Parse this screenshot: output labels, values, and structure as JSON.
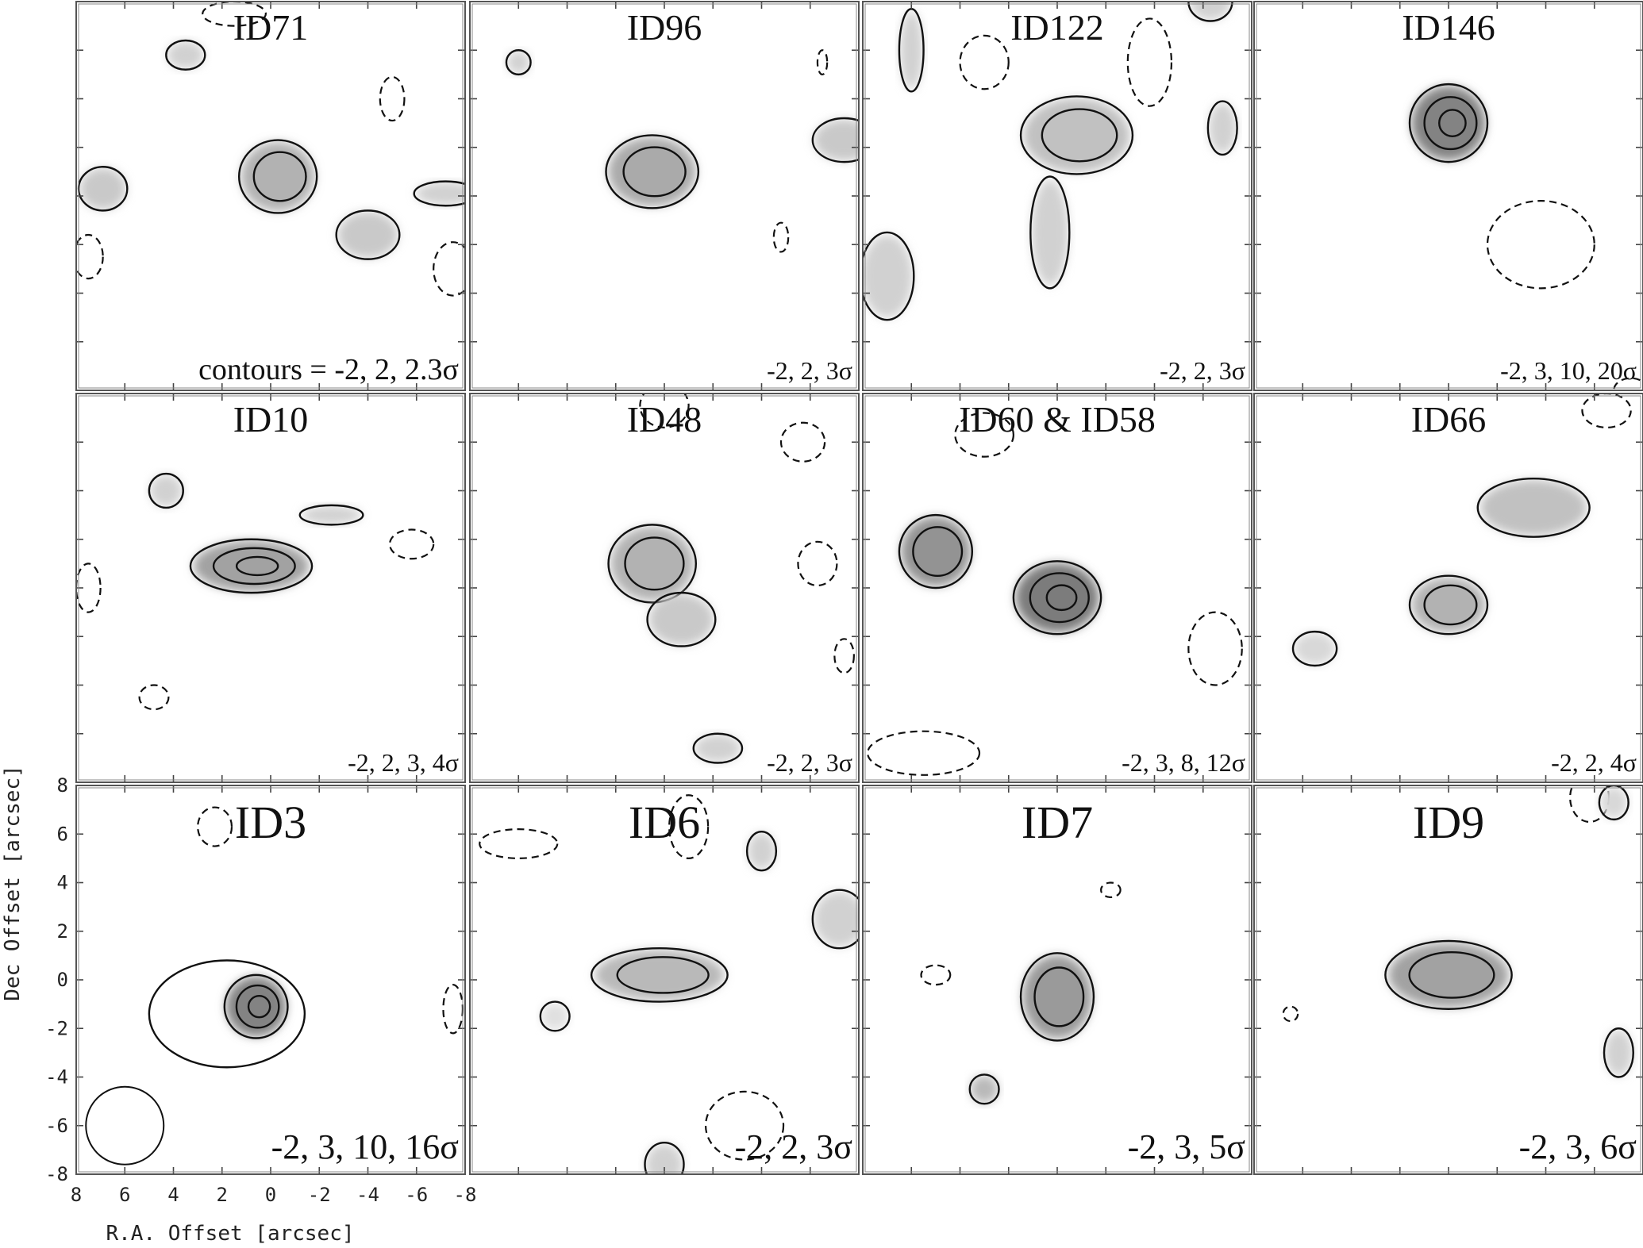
{
  "figure": {
    "xlabel": "R.A. Offset [arcsec]",
    "ylabel": "Dec Offset [arcsec]",
    "xticks": [
      8,
      6,
      4,
      2,
      0,
      -2,
      -4,
      -6,
      -8
    ],
    "yticks": [
      8,
      6,
      4,
      2,
      0,
      -2,
      -4,
      -6,
      -8
    ]
  },
  "chart_data": {
    "type": "contour-map",
    "xlabel": "R.A. Offset [arcsec]",
    "ylabel": "Dec Offset [arcsec]",
    "xlim": [
      8,
      -8
    ],
    "ylim": [
      -8,
      8
    ],
    "beam": {
      "x": 6,
      "y": -6,
      "radius": 1.6
    },
    "panels": [
      {
        "id": "ID71",
        "contours": "contours = -2, 2, 2.3σ",
        "title_size": "normal",
        "blobs": [
          [
            -0.3,
            0.8,
            1.6,
            1.5,
            0.5,
            2
          ],
          [
            6.9,
            0.3,
            1.0,
            0.9,
            0.35,
            1
          ],
          [
            3.5,
            5.8,
            0.8,
            0.6,
            0.3,
            1
          ],
          [
            -4.0,
            -1.6,
            1.3,
            1.0,
            0.35,
            1
          ],
          [
            -7.2,
            0.1,
            1.3,
            0.5,
            0.3,
            1
          ],
          [
            -5.0,
            4.0,
            0.5,
            0.9,
            0,
            -1
          ],
          [
            1.5,
            7.5,
            1.3,
            0.5,
            0,
            -1
          ],
          [
            7.5,
            -2.5,
            0.6,
            0.9,
            0,
            -1
          ],
          [
            -7.5,
            -3.0,
            0.8,
            1.1,
            0,
            -1
          ]
        ]
      },
      {
        "id": "ID96",
        "contours": "-2, 2, 3σ",
        "title_size": "normal",
        "blobs": [
          [
            0.5,
            1.0,
            1.9,
            1.5,
            0.55,
            2
          ],
          [
            6.0,
            5.5,
            0.5,
            0.5,
            0.3,
            1
          ],
          [
            -7.4,
            2.3,
            1.3,
            0.9,
            0.35,
            1
          ],
          [
            -4.8,
            -1.7,
            0.3,
            0.6,
            0,
            -1
          ],
          [
            -6.5,
            5.5,
            0.2,
            0.5,
            0,
            -1
          ]
        ]
      },
      {
        "id": "ID122",
        "contours": "-2, 2, 3σ",
        "title_size": "normal",
        "blobs": [
          [
            -0.8,
            2.5,
            2.3,
            1.6,
            0.4,
            2
          ],
          [
            0.3,
            -1.5,
            0.8,
            2.3,
            0.3,
            1
          ],
          [
            7.0,
            -3.3,
            1.1,
            1.8,
            0.3,
            1
          ],
          [
            6.0,
            6.0,
            0.5,
            1.7,
            0.3,
            1
          ],
          [
            -6.8,
            2.8,
            0.6,
            1.1,
            0.3,
            1
          ],
          [
            -6.3,
            8.0,
            0.9,
            0.8,
            0.3,
            1
          ],
          [
            3.0,
            5.5,
            1.0,
            1.1,
            0,
            -1
          ],
          [
            -3.8,
            5.5,
            0.9,
            1.8,
            0,
            -1
          ]
        ]
      },
      {
        "id": "ID146",
        "contours": "-2, 3, 10, 20σ",
        "title_size": "normal",
        "blobs": [
          [
            0.0,
            3.0,
            1.6,
            1.6,
            0.8,
            3
          ],
          [
            -3.8,
            -2.0,
            2.2,
            1.8,
            0,
            -1
          ],
          [
            -7.5,
            -8.0,
            0.7,
            0.5,
            0,
            -1
          ]
        ]
      },
      {
        "id": "ID10",
        "contours": "-2, 2, 3, 4σ",
        "title_size": "normal",
        "blobs": [
          [
            0.8,
            0.9,
            2.5,
            1.1,
            0.6,
            3
          ],
          [
            4.3,
            4.0,
            0.7,
            0.7,
            0.3,
            1
          ],
          [
            -2.5,
            3.0,
            1.3,
            0.4,
            0.3,
            1
          ],
          [
            7.5,
            0.0,
            0.5,
            1.0,
            0,
            -1
          ],
          [
            -5.8,
            1.8,
            0.9,
            0.6,
            0,
            -1
          ],
          [
            4.8,
            -4.5,
            0.6,
            0.5,
            0,
            -1
          ]
        ]
      },
      {
        "id": "ID48",
        "contours": "-2, 2, 3σ",
        "title_size": "normal",
        "blobs": [
          [
            0.5,
            1.0,
            1.8,
            1.6,
            0.5,
            2
          ],
          [
            -0.7,
            -1.3,
            1.4,
            1.1,
            0.35,
            1
          ],
          [
            -2.2,
            -6.6,
            1.0,
            0.6,
            0.3,
            1
          ],
          [
            -7.4,
            -2.8,
            0.4,
            0.7,
            0,
            -1
          ],
          [
            -6.3,
            1.0,
            0.8,
            0.9,
            0,
            -1
          ],
          [
            -5.7,
            6.0,
            0.9,
            0.8,
            0,
            -1
          ],
          [
            0.0,
            7.5,
            1.0,
            0.9,
            0,
            -1
          ]
        ]
      },
      {
        "id": "ID60 & ID58",
        "contours": "-2, 3, 8, 12σ",
        "title_size": "normal",
        "blobs": [
          [
            0.0,
            -0.4,
            1.8,
            1.5,
            0.85,
            3
          ],
          [
            5.0,
            1.5,
            1.5,
            1.5,
            0.7,
            2
          ],
          [
            3.0,
            6.3,
            1.2,
            0.9,
            0,
            -1
          ],
          [
            -6.5,
            -2.5,
            1.1,
            1.5,
            0,
            -1
          ],
          [
            5.5,
            -6.8,
            2.3,
            0.9,
            0,
            -1
          ]
        ]
      },
      {
        "id": "ID66",
        "contours": "-2, 2, 4σ",
        "title_size": "normal",
        "blobs": [
          [
            0.0,
            -0.7,
            1.6,
            1.2,
            0.5,
            2
          ],
          [
            -3.5,
            3.3,
            2.3,
            1.2,
            0.4,
            1
          ],
          [
            5.5,
            -2.5,
            0.9,
            0.7,
            0.25,
            1
          ],
          [
            -6.5,
            7.3,
            1.0,
            0.7,
            0,
            -1
          ]
        ]
      },
      {
        "id": "ID3",
        "contours": "-2, 3, 10, 16σ",
        "title_size": "large",
        "blobs": [
          [
            0.6,
            -1.1,
            1.3,
            1.3,
            0.8,
            3
          ],
          [
            1.8,
            -1.4,
            3.2,
            2.2,
            0,
            1
          ],
          [
            -7.5,
            -1.2,
            0.4,
            1.0,
            0,
            -1
          ],
          [
            2.3,
            6.3,
            0.7,
            0.8,
            0,
            -1
          ]
        ]
      },
      {
        "id": "ID6",
        "contours": "-2, 2, 3σ",
        "title_size": "large",
        "blobs": [
          [
            0.2,
            0.2,
            2.8,
            1.1,
            0.45,
            2
          ],
          [
            -4.0,
            5.3,
            0.6,
            0.8,
            0.3,
            1
          ],
          [
            -7.2,
            2.5,
            1.1,
            1.2,
            0.3,
            1
          ],
          [
            0.0,
            -7.6,
            0.8,
            0.9,
            0.3,
            1
          ],
          [
            6.0,
            5.6,
            1.6,
            0.6,
            0,
            -1
          ],
          [
            -1.0,
            6.3,
            0.8,
            1.3,
            0,
            -1
          ],
          [
            -3.3,
            -6.0,
            1.6,
            1.4,
            0,
            -1
          ],
          [
            4.5,
            -1.5,
            0.6,
            0.6,
            0.2,
            1
          ]
        ]
      },
      {
        "id": "ID7",
        "contours": "-2, 3, 5σ",
        "title_size": "large",
        "blobs": [
          [
            0.0,
            -0.7,
            1.5,
            1.8,
            0.65,
            2
          ],
          [
            3.0,
            -4.5,
            0.6,
            0.6,
            0.45,
            1
          ],
          [
            -2.2,
            3.7,
            0.4,
            0.3,
            0,
            -1
          ],
          [
            5.0,
            0.2,
            0.6,
            0.4,
            0,
            -1
          ]
        ]
      },
      {
        "id": "ID9",
        "contours": "-2, 3, 6σ",
        "title_size": "large",
        "blobs": [
          [
            0.0,
            0.2,
            2.6,
            1.4,
            0.6,
            2
          ],
          [
            -7.0,
            -3.0,
            0.6,
            1.0,
            0.3,
            1
          ],
          [
            -5.8,
            7.5,
            0.8,
            1.0,
            0,
            -1
          ],
          [
            6.5,
            -1.4,
            0.3,
            0.3,
            0,
            -1
          ],
          [
            -6.8,
            7.3,
            0.6,
            0.7,
            0.25,
            1
          ]
        ]
      }
    ]
  }
}
